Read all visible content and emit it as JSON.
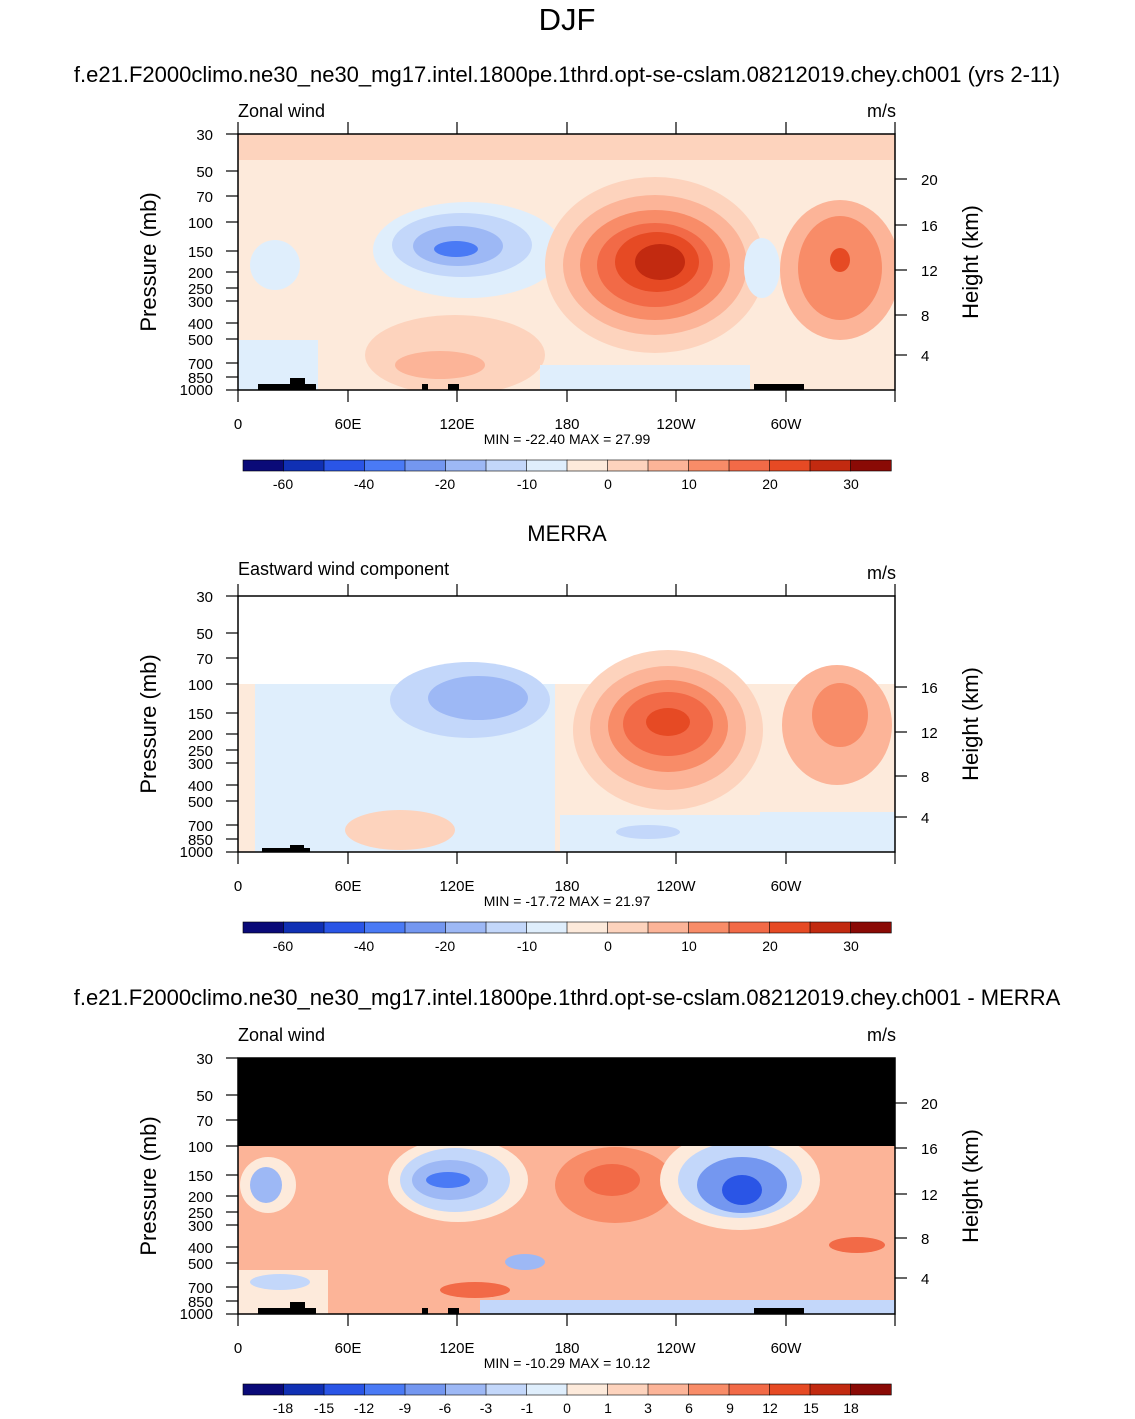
{
  "header": {
    "season": "DJF"
  },
  "chart_data": [
    {
      "type": "heatmap",
      "panel": "model",
      "title": "f.e21.F2000climo.ne30_ne30_mg17.intel.1800pe.1thrd.opt-se-cslam.08212019.chey.ch001 (yrs 2-11)",
      "left_label": "Zonal wind",
      "units": "m/s",
      "ylabel": "Pressure (mb)",
      "ylabel_right": "Height (km)",
      "y_ticks": [
        "30",
        "50",
        "70",
        "100",
        "150",
        "200",
        "250",
        "300",
        "400",
        "500",
        "700",
        "850",
        "1000"
      ],
      "y_right_ticks": [
        "20",
        "16",
        "12",
        "8",
        "4"
      ],
      "x_ticks": [
        "0",
        "60E",
        "120E",
        "180",
        "120W",
        "60W"
      ],
      "min_max": "MIN = -22.40  MAX =  27.99",
      "colorbar_labels": [
        "-60",
        "-40",
        "-20",
        "-10",
        "0",
        "10",
        "20",
        "30"
      ],
      "features": [
        {
          "lon": 130,
          "p": 170,
          "value": -22.4
        },
        {
          "lon": 240,
          "p": 180,
          "value": 27.99
        },
        {
          "lon": 330,
          "p": 180,
          "value": 22
        }
      ]
    },
    {
      "type": "heatmap",
      "panel": "obs",
      "title": "MERRA",
      "left_label": "Eastward wind component",
      "units": "m/s",
      "ylabel": "Pressure (mb)",
      "ylabel_right": "Height (km)",
      "y_ticks": [
        "30",
        "50",
        "70",
        "100",
        "150",
        "200",
        "250",
        "300",
        "400",
        "500",
        "700",
        "850",
        "1000"
      ],
      "y_right_ticks": [
        "16",
        "12",
        "8",
        "4"
      ],
      "x_ticks": [
        "0",
        "60E",
        "120E",
        "180",
        "120W",
        "60W"
      ],
      "min_max": "MIN = -17.72  MAX =  21.97",
      "colorbar_labels": [
        "-60",
        "-40",
        "-20",
        "-10",
        "0",
        "10",
        "20",
        "30"
      ],
      "features": [
        {
          "lon": 130,
          "p": 130,
          "value": -17.72
        },
        {
          "lon": 240,
          "p": 170,
          "value": 21.97
        },
        {
          "lon": 330,
          "p": 160,
          "value": 18
        }
      ]
    },
    {
      "type": "heatmap",
      "panel": "difference",
      "title": "f.e21.F2000climo.ne30_ne30_mg17.intel.1800pe.1thrd.opt-se-cslam.08212019.chey.ch001 - MERRA",
      "left_label": "Zonal wind",
      "units": "m/s",
      "ylabel": "Pressure (mb)",
      "ylabel_right": "Height (km)",
      "y_ticks": [
        "30",
        "50",
        "70",
        "100",
        "150",
        "200",
        "250",
        "300",
        "400",
        "500",
        "700",
        "850",
        "1000"
      ],
      "y_right_ticks": [
        "20",
        "16",
        "12",
        "8",
        "4"
      ],
      "x_ticks": [
        "0",
        "60E",
        "120E",
        "180",
        "120W",
        "60W"
      ],
      "min_max": "MIN = -10.29  MAX =  10.12",
      "colorbar_labels": [
        "-18",
        "-15",
        "-12",
        "-9",
        "-6",
        "-3",
        "-1",
        "0",
        "1",
        "3",
        "6",
        "9",
        "12",
        "15",
        "18"
      ],
      "features": [
        {
          "lon": 275,
          "p": 180,
          "value": -10.29
        },
        {
          "lon": 205,
          "p": 170,
          "value": 10.12
        },
        {
          "lon": 125,
          "p": 170,
          "value": -7
        }
      ]
    }
  ],
  "palette": [
    "#0a0a78",
    "#1030b4",
    "#2a55e6",
    "#4a7af5",
    "#7497f0",
    "#9db8f5",
    "#c3d7fa",
    "#dfeefc",
    "#fdeadb",
    "#fdd3bd",
    "#fcb498",
    "#f88c68",
    "#f26a47",
    "#e64a24",
    "#c22a10",
    "#8a0a05"
  ]
}
